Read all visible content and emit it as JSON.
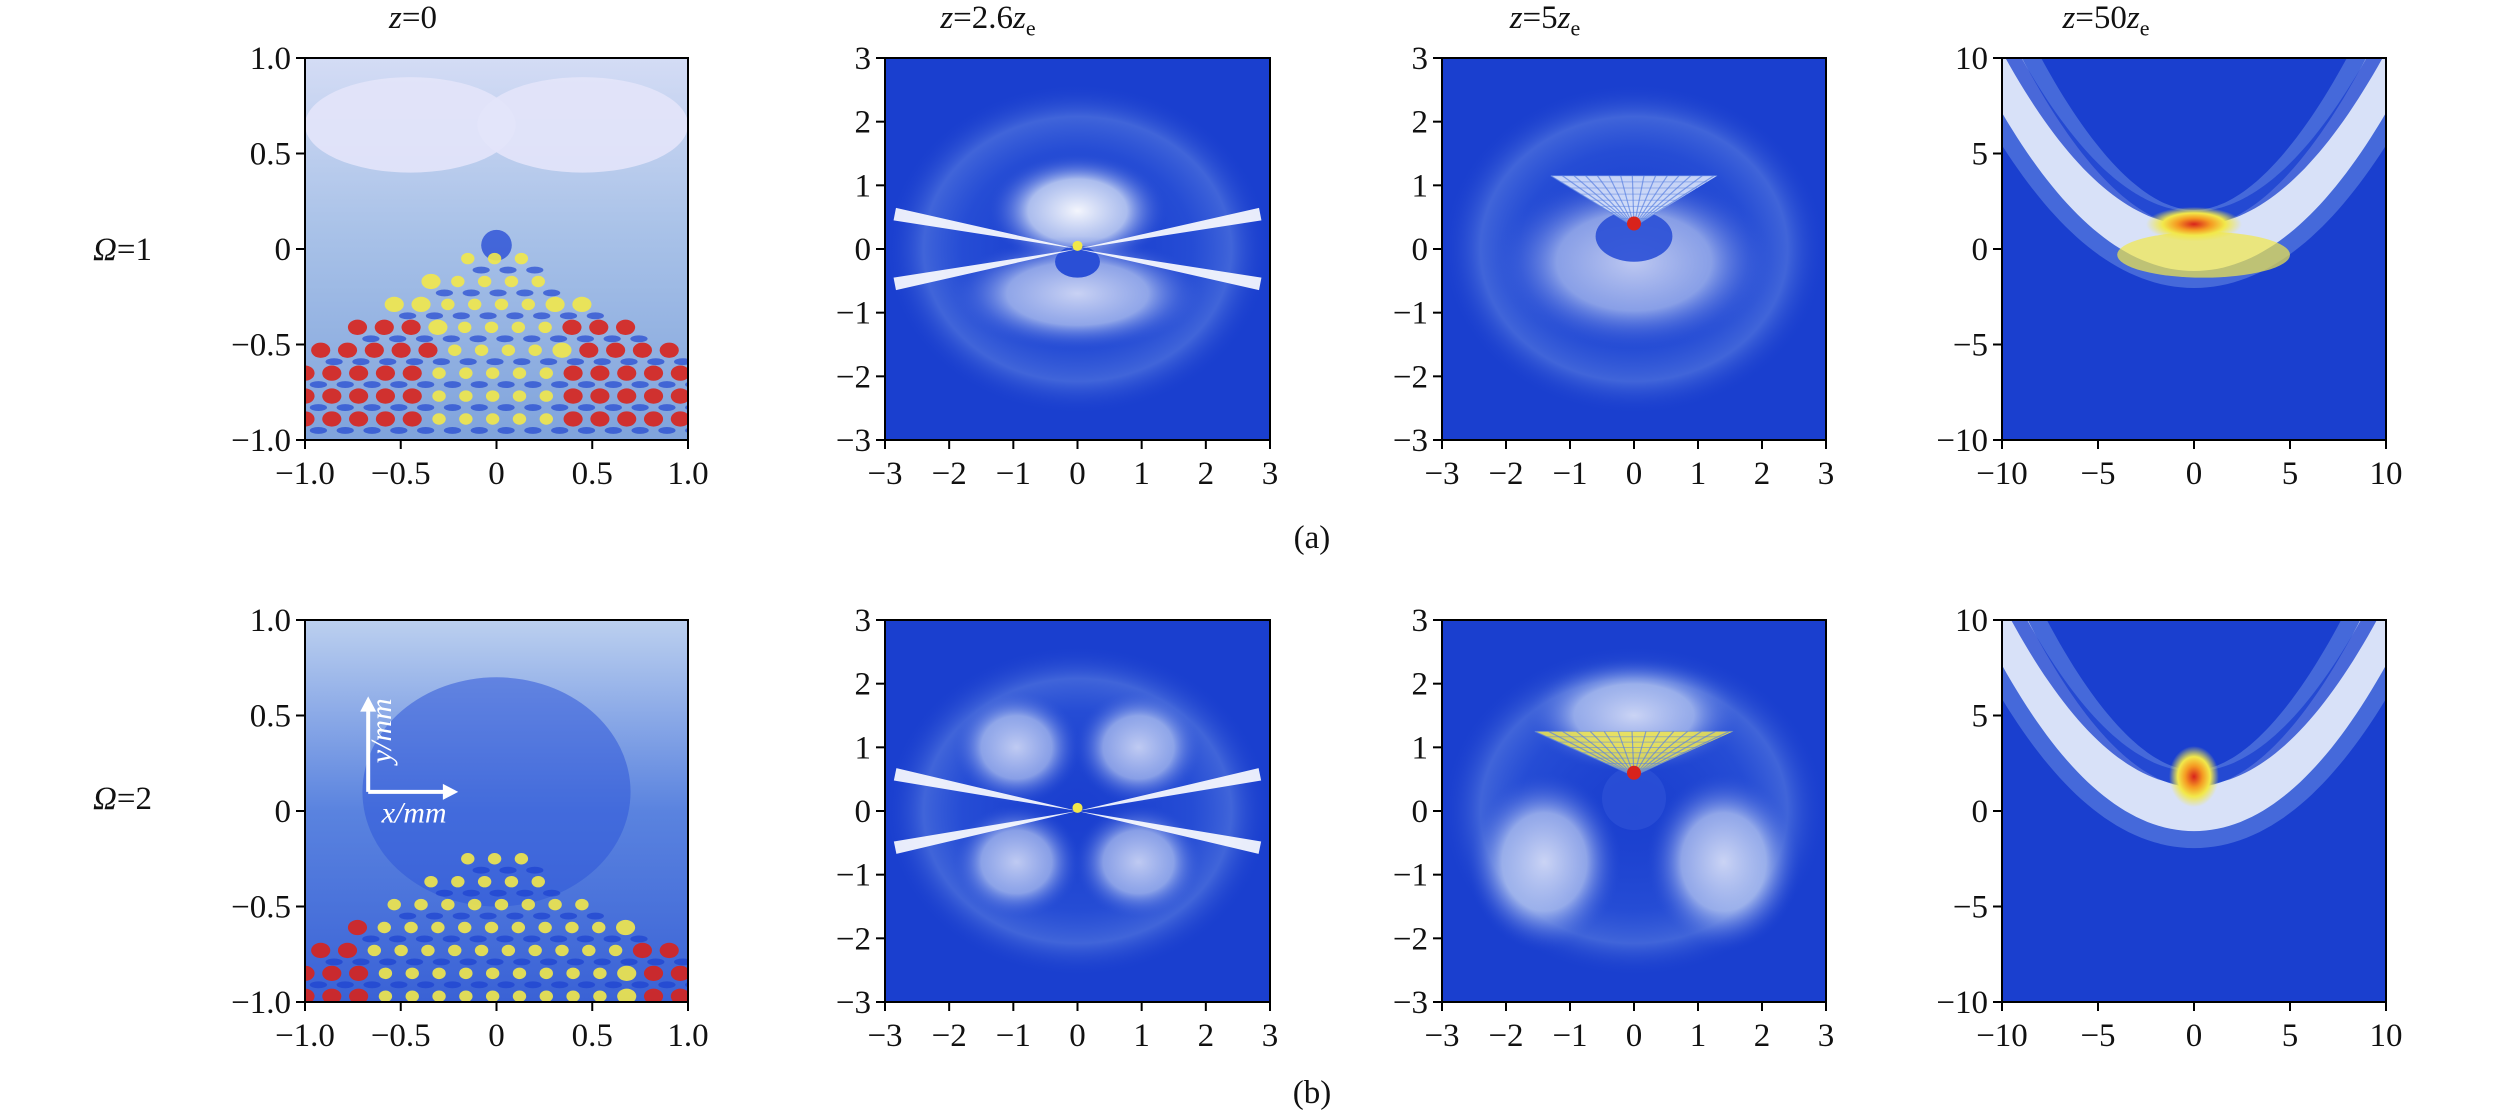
{
  "column_titles": [
    {
      "var": "z",
      "eq": "=0",
      "coef": "",
      "sub_var": "",
      "sub": ""
    },
    {
      "var": "z",
      "eq": "=2.6",
      "coef": "",
      "sub_var": "z",
      "sub": "e"
    },
    {
      "var": "z",
      "eq": "=5",
      "coef": "",
      "sub_var": "z",
      "sub": "e"
    },
    {
      "var": "z",
      "eq": "=50",
      "coef": "",
      "sub_var": "z",
      "sub": "e"
    }
  ],
  "row_labels": [
    {
      "var": "Ω",
      "eq": "=1"
    },
    {
      "var": "Ω",
      "eq": "=2"
    }
  ],
  "captions": [
    "(a)",
    "(b)"
  ],
  "inset_axes": {
    "x_label": "x",
    "x_unit": "/mm",
    "y_label": "y",
    "y_unit": "/mm"
  },
  "colors": {
    "background": "#1a3fcf",
    "low": "#2a4fd6",
    "mid": "#ffffff",
    "high_yellow": "#f2e84a",
    "peak_red": "#d8231c",
    "light_field": "#a9c2e8"
  },
  "chart_data": [
    {
      "type": "heatmap",
      "row": "Ω=1",
      "column": "z=0",
      "xlim": [
        -1.0,
        1.0
      ],
      "ylim": [
        -1.0,
        1.0
      ],
      "xticks": [
        "−1.0",
        "−0.5",
        "0",
        "0.5",
        "1.0"
      ],
      "yticks": [
        "−1.0",
        "−0.5",
        "0",
        "0.5",
        "1.0"
      ]
    },
    {
      "type": "heatmap",
      "row": "Ω=1",
      "column": "z=2.6z_e",
      "xlim": [
        -3,
        3
      ],
      "ylim": [
        -3,
        3
      ],
      "xticks": [
        "−3",
        "−2",
        "−1",
        "0",
        "1",
        "2",
        "3"
      ],
      "yticks": [
        "−3",
        "−2",
        "−1",
        "0",
        "1",
        "2",
        "3"
      ]
    },
    {
      "type": "heatmap",
      "row": "Ω=1",
      "column": "z=5z_e",
      "xlim": [
        -3,
        3
      ],
      "ylim": [
        -3,
        3
      ],
      "xticks": [
        "−3",
        "−2",
        "−1",
        "0",
        "1",
        "2",
        "3"
      ],
      "yticks": [
        "−3",
        "−2",
        "−1",
        "0",
        "1",
        "2",
        "3"
      ]
    },
    {
      "type": "heatmap",
      "row": "Ω=1",
      "column": "z=50z_e",
      "xlim": [
        -10,
        10
      ],
      "ylim": [
        -10,
        10
      ],
      "xticks": [
        "−10",
        "−5",
        "0",
        "5",
        "10"
      ],
      "yticks": [
        "−10",
        "−5",
        "0",
        "5",
        "10"
      ]
    },
    {
      "type": "heatmap",
      "row": "Ω=2",
      "column": "z=0",
      "xlim": [
        -1.0,
        1.0
      ],
      "ylim": [
        -1.0,
        1.0
      ],
      "xticks": [
        "−1.0",
        "−0.5",
        "0",
        "0.5",
        "1.0"
      ],
      "yticks": [
        "−1.0",
        "−0.5",
        "0",
        "0.5",
        "1.0"
      ]
    },
    {
      "type": "heatmap",
      "row": "Ω=2",
      "column": "z=2.6z_e",
      "xlim": [
        -3,
        3
      ],
      "ylim": [
        -3,
        3
      ],
      "xticks": [
        "−3",
        "−2",
        "−1",
        "0",
        "1",
        "2",
        "3"
      ],
      "yticks": [
        "−3",
        "−2",
        "−1",
        "0",
        "1",
        "2",
        "3"
      ]
    },
    {
      "type": "heatmap",
      "row": "Ω=2",
      "column": "z=5z_e",
      "xlim": [
        -3,
        3
      ],
      "ylim": [
        -3,
        3
      ],
      "xticks": [
        "−3",
        "−2",
        "−1",
        "0",
        "1",
        "2",
        "3"
      ],
      "yticks": [
        "−3",
        "−2",
        "−1",
        "0",
        "1",
        "2",
        "3"
      ]
    },
    {
      "type": "heatmap",
      "row": "Ω=2",
      "column": "z=50z_e",
      "xlim": [
        -10,
        10
      ],
      "ylim": [
        -10,
        10
      ],
      "xticks": [
        "−10",
        "−5",
        "0",
        "5",
        "10"
      ],
      "yticks": [
        "−10",
        "−5",
        "0",
        "5",
        "10"
      ]
    }
  ]
}
